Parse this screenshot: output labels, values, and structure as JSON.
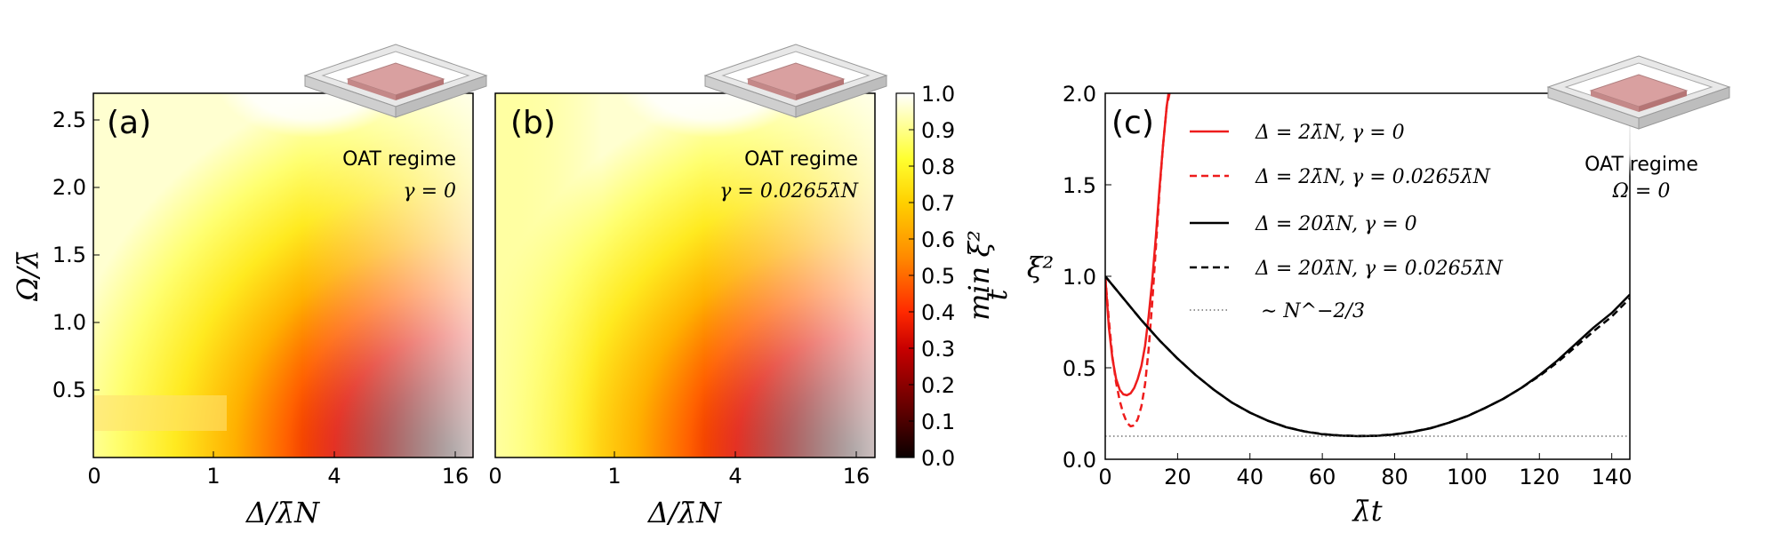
{
  "chart_data": [
    {
      "id": "a",
      "type": "heatmap",
      "panel_label": "(a)",
      "regime_title": "OAT regime",
      "regime_param": "γ = 0",
      "xlabel": "Δ/λ̄N",
      "ylabel": "Ω/λ̄",
      "x_ticks": [
        "0",
        "1",
        "4",
        "16"
      ],
      "y_ticks": [
        "0.5",
        "1.0",
        "1.5",
        "2.0",
        "2.5"
      ],
      "y_tick_values": [
        0.5,
        1.0,
        1.5,
        2.0,
        2.5
      ],
      "ylim": [
        0.0,
        2.7
      ],
      "gamma": 0
    },
    {
      "id": "b",
      "type": "heatmap",
      "panel_label": "(b)",
      "regime_title": "OAT regime",
      "regime_param": "γ = 0.0265λ̄N",
      "xlabel": "Δ/λ̄N",
      "x_ticks": [
        "0",
        "1",
        "4",
        "16"
      ],
      "ylim": [
        0.0,
        2.7
      ],
      "gamma": 0.0265
    },
    {
      "id": "colorbar",
      "type": "colorbar",
      "label": "min ξ²",
      "label_sub": "t",
      "ticks": [
        "0.0",
        "0.1",
        "0.2",
        "0.3",
        "0.4",
        "0.5",
        "0.6",
        "0.7",
        "0.8",
        "0.9",
        "1.0"
      ],
      "range": [
        0.0,
        1.0
      ],
      "colormap": "hot"
    },
    {
      "id": "c",
      "type": "line",
      "panel_label": "(c)",
      "regime_title": "OAT regime",
      "regime_param": "Ω = 0",
      "xlabel": "λ̄t",
      "ylabel": "ξ²",
      "xlim": [
        0,
        145
      ],
      "ylim": [
        0.0,
        2.0
      ],
      "x_ticks": [
        "0",
        "20",
        "40",
        "60",
        "80",
        "100",
        "120",
        "140"
      ],
      "x_tick_values": [
        0,
        20,
        40,
        60,
        80,
        100,
        120,
        140
      ],
      "y_ticks": [
        "0.0",
        "0.5",
        "1.0",
        "1.5",
        "2.0"
      ],
      "y_tick_values": [
        0.0,
        0.5,
        1.0,
        1.5,
        2.0
      ],
      "series": [
        {
          "name": "Δ = 2λ̄N, γ = 0",
          "color": "#ee1c1c",
          "style": "solid",
          "x": [
            0,
            1,
            2,
            3,
            4,
            5,
            6,
            7,
            8,
            9,
            10,
            11,
            12,
            13,
            14,
            15,
            16,
            17,
            17.5
          ],
          "y": [
            1.0,
            0.72,
            0.55,
            0.44,
            0.38,
            0.355,
            0.35,
            0.36,
            0.39,
            0.44,
            0.51,
            0.62,
            0.78,
            0.98,
            1.22,
            1.48,
            1.72,
            1.93,
            2.0
          ]
        },
        {
          "name": "Δ = 2λ̄N, γ = 0.0265λ̄N",
          "color": "#ee1c1c",
          "style": "dashed",
          "x": [
            0,
            1,
            2,
            3,
            4,
            5,
            6,
            7,
            8,
            9,
            10,
            11,
            12,
            13,
            14,
            15,
            16,
            17,
            17.8
          ],
          "y": [
            1.0,
            0.76,
            0.56,
            0.42,
            0.32,
            0.25,
            0.2,
            0.18,
            0.185,
            0.22,
            0.29,
            0.41,
            0.6,
            0.86,
            1.16,
            1.46,
            1.72,
            1.93,
            2.0
          ]
        },
        {
          "name": "Δ = 20λ̄N, γ = 0",
          "color": "#000000",
          "style": "solid",
          "x": [
            0,
            5,
            10,
            15,
            20,
            25,
            30,
            35,
            40,
            45,
            50,
            55,
            60,
            65,
            70,
            75,
            80,
            85,
            90,
            95,
            100,
            105,
            110,
            115,
            120,
            125,
            130,
            135,
            140,
            145
          ],
          "y": [
            1.0,
            0.88,
            0.76,
            0.65,
            0.55,
            0.46,
            0.38,
            0.31,
            0.255,
            0.21,
            0.175,
            0.152,
            0.137,
            0.129,
            0.126,
            0.128,
            0.136,
            0.15,
            0.17,
            0.2,
            0.235,
            0.28,
            0.33,
            0.39,
            0.46,
            0.54,
            0.63,
            0.72,
            0.8,
            0.9
          ]
        },
        {
          "name": "Δ = 20λ̄N, γ = 0.0265λ̄N",
          "color": "#000000",
          "style": "dashed",
          "x": [
            0,
            5,
            10,
            15,
            20,
            25,
            30,
            35,
            40,
            45,
            50,
            55,
            60,
            65,
            70,
            75,
            80,
            85,
            90,
            95,
            100,
            105,
            110,
            115,
            120,
            125,
            130,
            135,
            140,
            145
          ],
          "y": [
            1.0,
            0.88,
            0.76,
            0.65,
            0.55,
            0.46,
            0.38,
            0.31,
            0.255,
            0.21,
            0.176,
            0.153,
            0.138,
            0.13,
            0.127,
            0.129,
            0.137,
            0.151,
            0.171,
            0.2,
            0.236,
            0.28,
            0.33,
            0.39,
            0.455,
            0.53,
            0.615,
            0.7,
            0.78,
            0.88
          ]
        },
        {
          "name": "∼ N^−2/3",
          "color": "#555555",
          "style": "dotted",
          "x": [
            0,
            145
          ],
          "y": [
            0.126,
            0.126
          ]
        }
      ]
    }
  ]
}
